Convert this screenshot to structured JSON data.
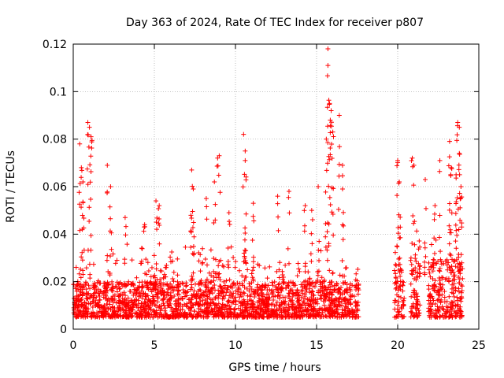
{
  "chart_data": {
    "type": "scatter",
    "title": "Day 363 of 2024, Rate Of TEC Index for receiver p807",
    "xlabel": "GPS time / hours",
    "ylabel": "ROTI / TECUs",
    "xlim": [
      0,
      25
    ],
    "ylim": [
      0,
      0.12
    ],
    "x_ticks": [
      0,
      5,
      10,
      15,
      20,
      25
    ],
    "x_tick_labels": [
      "0",
      "5",
      "10",
      "15",
      "20",
      "25"
    ],
    "y_ticks": [
      0,
      0.02,
      0.04,
      0.06,
      0.08,
      0.1,
      0.12
    ],
    "y_tick_labels": [
      "0",
      "0.02",
      "0.04",
      "0.06",
      "0.08",
      "0.1",
      "0.12"
    ],
    "grid": true,
    "marker": "+",
    "marker_color": "#ff0000",
    "series": [
      {
        "name": "ROTI",
        "segments": [
          {
            "x_start": 0.0,
            "x_end": 17.6,
            "baseline_range": [
              0.005,
              0.02
            ]
          },
          {
            "x_start": 19.8,
            "x_end": 20.4,
            "baseline_range": [
              0.005,
              0.03
            ]
          },
          {
            "x_start": 20.8,
            "x_end": 21.4,
            "baseline_range": [
              0.005,
              0.03
            ]
          },
          {
            "x_start": 21.9,
            "x_end": 24.0,
            "baseline_range": [
              0.005,
              0.03
            ]
          }
        ],
        "spikes": [
          {
            "x": 0.4,
            "y": 0.078
          },
          {
            "x": 0.5,
            "y": 0.068
          },
          {
            "x": 0.6,
            "y": 0.062
          },
          {
            "x": 0.9,
            "y": 0.087
          },
          {
            "x": 1.0,
            "y": 0.085
          },
          {
            "x": 1.1,
            "y": 0.081
          },
          {
            "x": 2.1,
            "y": 0.069
          },
          {
            "x": 2.3,
            "y": 0.06
          },
          {
            "x": 3.2,
            "y": 0.047
          },
          {
            "x": 4.4,
            "y": 0.044
          },
          {
            "x": 5.1,
            "y": 0.054
          },
          {
            "x": 5.3,
            "y": 0.052
          },
          {
            "x": 7.3,
            "y": 0.067
          },
          {
            "x": 7.4,
            "y": 0.059
          },
          {
            "x": 8.2,
            "y": 0.055
          },
          {
            "x": 8.7,
            "y": 0.062
          },
          {
            "x": 8.9,
            "y": 0.072
          },
          {
            "x": 9.0,
            "y": 0.073
          },
          {
            "x": 9.6,
            "y": 0.049
          },
          {
            "x": 10.5,
            "y": 0.082
          },
          {
            "x": 10.6,
            "y": 0.075
          },
          {
            "x": 10.6,
            "y": 0.071
          },
          {
            "x": 11.1,
            "y": 0.053
          },
          {
            "x": 12.6,
            "y": 0.056
          },
          {
            "x": 13.3,
            "y": 0.058
          },
          {
            "x": 14.3,
            "y": 0.052
          },
          {
            "x": 14.7,
            "y": 0.05
          },
          {
            "x": 15.1,
            "y": 0.06
          },
          {
            "x": 15.7,
            "y": 0.118
          },
          {
            "x": 15.7,
            "y": 0.111
          },
          {
            "x": 15.8,
            "y": 0.095
          },
          {
            "x": 15.9,
            "y": 0.092
          },
          {
            "x": 16.0,
            "y": 0.083
          },
          {
            "x": 15.6,
            "y": 0.08
          },
          {
            "x": 16.4,
            "y": 0.09
          },
          {
            "x": 16.6,
            "y": 0.069
          },
          {
            "x": 20.0,
            "y": 0.071
          },
          {
            "x": 20.1,
            "y": 0.062
          },
          {
            "x": 20.9,
            "y": 0.072
          },
          {
            "x": 21.0,
            "y": 0.069
          },
          {
            "x": 21.7,
            "y": 0.063
          },
          {
            "x": 22.3,
            "y": 0.052
          },
          {
            "x": 22.6,
            "y": 0.071
          },
          {
            "x": 23.2,
            "y": 0.079
          },
          {
            "x": 23.3,
            "y": 0.068
          },
          {
            "x": 23.7,
            "y": 0.087
          },
          {
            "x": 23.8,
            "y": 0.085
          },
          {
            "x": 23.8,
            "y": 0.074
          },
          {
            "x": 23.6,
            "y": 0.065
          },
          {
            "x": 23.9,
            "y": 0.06
          }
        ]
      }
    ]
  }
}
